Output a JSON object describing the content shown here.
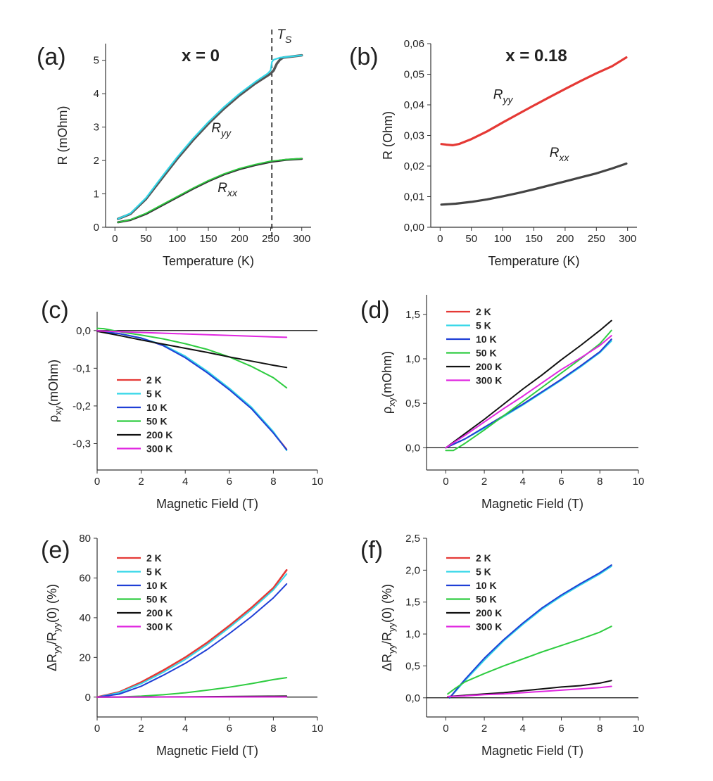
{
  "chart_data": [
    {
      "id": "a",
      "type": "line",
      "panel_label": "(a)",
      "title": "x = 0",
      "xlabel": "Temperature (K)",
      "ylabel": "R (mOhm)",
      "xlim": [
        -15,
        315
      ],
      "ylim": [
        0,
        5.5
      ],
      "xticks": [
        "0",
        "50",
        "100",
        "150",
        "200",
        "250",
        "300"
      ],
      "yticks": [
        "0",
        "1",
        "2",
        "3",
        "4",
        "5"
      ],
      "grid": false,
      "legend": "none",
      "annotations": [
        {
          "base": "R",
          "sub": "yy",
          "x": 155,
          "y": 2.85
        },
        {
          "base": "R",
          "sub": "xx",
          "x": 165,
          "y": 1.05
        },
        {
          "base": "T",
          "sub": "S",
          "x": 260,
          "y": 5.65
        }
      ],
      "vline": {
        "x": 252
      },
      "series": [
        {
          "name": "R_yy (dark)",
          "color": "#555555",
          "width": 3.5,
          "x": [
            5,
            25,
            50,
            75,
            100,
            125,
            150,
            175,
            200,
            225,
            250,
            255,
            260,
            265,
            270,
            300
          ],
          "y": [
            0.25,
            0.4,
            0.85,
            1.45,
            2.05,
            2.6,
            3.1,
            3.55,
            3.95,
            4.3,
            4.6,
            4.7,
            4.9,
            5.02,
            5.08,
            5.15
          ]
        },
        {
          "name": "R_yy",
          "color": "#33d6e8",
          "width": 2.2,
          "x": [
            5,
            25,
            50,
            75,
            100,
            125,
            150,
            175,
            200,
            225,
            245,
            250,
            252,
            255,
            265,
            300
          ],
          "y": [
            0.25,
            0.42,
            0.88,
            1.5,
            2.1,
            2.65,
            3.15,
            3.6,
            4.0,
            4.35,
            4.6,
            4.7,
            4.95,
            5.02,
            5.08,
            5.15
          ]
        },
        {
          "name": "R_xx (dark)",
          "color": "#333333",
          "width": 3.0,
          "x": [
            5,
            25,
            50,
            75,
            100,
            125,
            150,
            175,
            200,
            225,
            250,
            275,
            300
          ],
          "y": [
            0.15,
            0.22,
            0.4,
            0.65,
            0.9,
            1.15,
            1.38,
            1.58,
            1.74,
            1.86,
            1.96,
            2.02,
            2.05
          ]
        },
        {
          "name": "R_xx",
          "color": "#2ecc40",
          "width": 1.8,
          "x": [
            5,
            25,
            50,
            75,
            100,
            125,
            150,
            175,
            200,
            225,
            250,
            275,
            300
          ],
          "y": [
            0.15,
            0.23,
            0.42,
            0.67,
            0.92,
            1.17,
            1.4,
            1.6,
            1.76,
            1.88,
            1.98,
            2.03,
            2.06
          ]
        }
      ]
    },
    {
      "id": "b",
      "type": "line",
      "panel_label": "(b)",
      "title": "x = 0.18",
      "xlabel": "Temperature (K)",
      "ylabel": "R (Ohm)",
      "xlim": [
        -15,
        315
      ],
      "ylim": [
        0,
        0.06
      ],
      "xticks": [
        "0",
        "50",
        "100",
        "150",
        "200",
        "250",
        "300"
      ],
      "yticks": [
        "0,00",
        "0,01",
        "0,02",
        "0,03",
        "0,04",
        "0,05",
        "0,06"
      ],
      "grid": false,
      "legend": "none",
      "annotations": [
        {
          "base": "R",
          "sub": "yy",
          "x": 85,
          "y": 0.042
        },
        {
          "base": "R",
          "sub": "xx",
          "x": 175,
          "y": 0.023
        }
      ],
      "series": [
        {
          "name": "R_yy",
          "color": "#e53935",
          "width": 3.2,
          "x": [
            2,
            10,
            20,
            30,
            50,
            75,
            100,
            125,
            150,
            175,
            200,
            225,
            250,
            275,
            298
          ],
          "y": [
            0.0272,
            0.027,
            0.0268,
            0.0272,
            0.0288,
            0.0313,
            0.0342,
            0.037,
            0.0398,
            0.0425,
            0.0452,
            0.0478,
            0.0503,
            0.0526,
            0.0555
          ]
        },
        {
          "name": "R_xx",
          "color": "#444444",
          "width": 3.2,
          "x": [
            2,
            25,
            50,
            75,
            100,
            125,
            150,
            175,
            200,
            225,
            250,
            275,
            298
          ],
          "y": [
            0.0074,
            0.0077,
            0.0083,
            0.0091,
            0.0101,
            0.0112,
            0.0124,
            0.0137,
            0.015,
            0.0163,
            0.0176,
            0.0192,
            0.0208
          ]
        }
      ]
    },
    {
      "id": "c",
      "type": "line",
      "panel_label": "(c)",
      "title": "",
      "xlabel": "Magnetic Field (T)",
      "ylabel": "ρxy(mOhm)",
      "ylabel_parts": {
        "base": "ρ",
        "sub": "xy",
        "rest": "(mOhm)"
      },
      "xlim": [
        0,
        10
      ],
      "ylim": [
        -0.37,
        0.05
      ],
      "xticks": [
        "0",
        "2",
        "4",
        "6",
        "8",
        "10"
      ],
      "yticks": [
        "-0,3",
        "-0,2",
        "-0,1",
        "0,0"
      ],
      "ytick_values": [
        -0.3,
        -0.2,
        -0.1,
        0.0
      ],
      "hline": {
        "y": 0
      },
      "grid": false,
      "legend": "lower-left",
      "series": [
        {
          "name": "2 K",
          "color": "#e53935",
          "x": [
            0,
            1,
            2,
            3,
            4,
            5,
            6,
            7,
            8,
            8.6
          ],
          "y": [
            -0.002,
            -0.008,
            -0.02,
            -0.04,
            -0.07,
            -0.11,
            -0.155,
            -0.205,
            -0.27,
            -0.315
          ]
        },
        {
          "name": "5 K",
          "color": "#33d6e8",
          "x": [
            0,
            1,
            2,
            3,
            4,
            5,
            6,
            7,
            8,
            8.6
          ],
          "y": [
            -0.002,
            -0.008,
            -0.02,
            -0.038,
            -0.068,
            -0.108,
            -0.153,
            -0.203,
            -0.268,
            -0.318
          ]
        },
        {
          "name": "10 K",
          "color": "#1f3fd6",
          "x": [
            0,
            1,
            2,
            3,
            4,
            5,
            6,
            7,
            8,
            8.6
          ],
          "y": [
            -0.002,
            -0.008,
            -0.02,
            -0.04,
            -0.072,
            -0.112,
            -0.157,
            -0.207,
            -0.272,
            -0.316
          ]
        },
        {
          "name": "50 K",
          "color": "#2ecc40",
          "x": [
            0,
            0.3,
            1,
            2,
            3,
            4,
            5,
            6,
            7,
            8,
            8.6
          ],
          "y": [
            0.006,
            0.005,
            -0.003,
            -0.012,
            -0.022,
            -0.035,
            -0.05,
            -0.07,
            -0.095,
            -0.125,
            -0.152
          ]
        },
        {
          "name": "200 K",
          "color": "#111111",
          "x": [
            0,
            1,
            2,
            3,
            4,
            5,
            6,
            7,
            8,
            8.6
          ],
          "y": [
            -0.002,
            -0.013,
            -0.025,
            -0.036,
            -0.047,
            -0.058,
            -0.07,
            -0.081,
            -0.092,
            -0.098
          ]
        },
        {
          "name": "300 K",
          "color": "#e026e0",
          "x": [
            0,
            2,
            4,
            6,
            8,
            8.6
          ],
          "y": [
            -0.001,
            -0.005,
            -0.009,
            -0.013,
            -0.017,
            -0.018
          ]
        }
      ]
    },
    {
      "id": "d",
      "type": "line",
      "panel_label": "(d)",
      "title": "",
      "xlabel": "Magnetic Field (T)",
      "ylabel": "ρxy(mOhm)",
      "ylabel_parts": {
        "base": "ρ",
        "sub": "xy",
        "rest": "(mOhm)"
      },
      "xlim": [
        -1,
        10
      ],
      "ylim": [
        -0.25,
        1.72
      ],
      "xticks": [
        "0",
        "2",
        "4",
        "6",
        "8",
        "10"
      ],
      "yticks": [
        "0,0",
        "0,5",
        "1,0",
        "1,5"
      ],
      "ytick_values": [
        0.0,
        0.5,
        1.0,
        1.5
      ],
      "hline": {
        "y": 0
      },
      "grid": false,
      "legend": "top-left",
      "series": [
        {
          "name": "2 K",
          "color": "#e53935",
          "x": [
            0,
            1,
            2,
            3,
            4,
            5,
            6,
            7,
            8,
            8.6
          ],
          "y": [
            0,
            0.1,
            0.23,
            0.36,
            0.49,
            0.63,
            0.77,
            0.92,
            1.08,
            1.22
          ]
        },
        {
          "name": "5 K",
          "color": "#33d6e8",
          "x": [
            0,
            1,
            2,
            3,
            4,
            5,
            6,
            7,
            8,
            8.6
          ],
          "y": [
            0,
            0.1,
            0.22,
            0.35,
            0.48,
            0.62,
            0.76,
            0.91,
            1.07,
            1.2
          ]
        },
        {
          "name": "10 K",
          "color": "#1f3fd6",
          "x": [
            0,
            1,
            2,
            3,
            4,
            5,
            6,
            7,
            8,
            8.6
          ],
          "y": [
            0,
            0.1,
            0.23,
            0.36,
            0.49,
            0.63,
            0.77,
            0.92,
            1.08,
            1.22
          ]
        },
        {
          "name": "50 K",
          "color": "#2ecc40",
          "x": [
            0,
            0.4,
            1,
            2,
            3,
            4,
            5,
            6,
            7,
            8,
            8.6
          ],
          "y": [
            -0.03,
            -0.03,
            0.05,
            0.2,
            0.36,
            0.52,
            0.68,
            0.84,
            1.0,
            1.17,
            1.32
          ]
        },
        {
          "name": "200 K",
          "color": "#111111",
          "x": [
            0,
            1,
            2,
            3,
            4,
            5,
            6,
            7,
            8,
            8.6
          ],
          "y": [
            0,
            0.16,
            0.32,
            0.49,
            0.66,
            0.82,
            0.99,
            1.15,
            1.32,
            1.43
          ]
        },
        {
          "name": "300 K",
          "color": "#e026e0",
          "x": [
            0,
            1,
            2,
            3,
            4,
            5,
            6,
            7,
            8,
            8.6
          ],
          "y": [
            0,
            0.14,
            0.29,
            0.44,
            0.58,
            0.73,
            0.88,
            1.01,
            1.15,
            1.26
          ]
        }
      ]
    },
    {
      "id": "e",
      "type": "line",
      "panel_label": "(e)",
      "title": "",
      "xlabel": "Magnetic Field (T)",
      "ylabel": "ΔRyy/Ryy(0) (%)",
      "ylabel_parts": {
        "pre": "ΔR",
        "sub1": "yy",
        "mid": "/R",
        "sub2": "yy",
        "rest": "(0) (%)"
      },
      "xlim": [
        0,
        10
      ],
      "ylim": [
        -10,
        80
      ],
      "xticks": [
        "0",
        "2",
        "4",
        "6",
        "8",
        "10"
      ],
      "yticks": [
        "0",
        "20",
        "40",
        "60",
        "80"
      ],
      "ytick_values": [
        0,
        20,
        40,
        60,
        80
      ],
      "hline": {
        "y": 0
      },
      "grid": false,
      "legend": "top-left",
      "series": [
        {
          "name": "2 K",
          "color": "#e53935",
          "width": 2.6,
          "x": [
            0,
            1,
            2,
            3,
            4,
            5,
            6,
            7,
            8,
            8.6
          ],
          "y": [
            0,
            2.5,
            7.5,
            13.5,
            20,
            27.5,
            36,
            45,
            55,
            64
          ]
        },
        {
          "name": "5 K",
          "color": "#33d6e8",
          "x": [
            0,
            1,
            2,
            3,
            4,
            5,
            6,
            7,
            8,
            8.6
          ],
          "y": [
            0,
            2.2,
            6.8,
            12.5,
            19,
            26.5,
            35,
            44,
            54,
            62
          ]
        },
        {
          "name": "10 K",
          "color": "#1f3fd6",
          "x": [
            0,
            1,
            2,
            3,
            4,
            5,
            6,
            7,
            8,
            8.6
          ],
          "y": [
            0,
            1.5,
            5.5,
            11,
            17,
            24,
            32,
            40.5,
            50,
            57
          ]
        },
        {
          "name": "50 K",
          "color": "#2ecc40",
          "x": [
            0,
            1,
            2,
            3,
            4,
            5,
            6,
            7,
            8,
            8.6
          ],
          "y": [
            0,
            0.1,
            0.5,
            1.2,
            2.2,
            3.5,
            5,
            6.8,
            8.8,
            9.8
          ]
        },
        {
          "name": "200 K",
          "color": "#111111",
          "x": [
            0,
            2,
            4,
            6,
            8,
            8.6
          ],
          "y": [
            0,
            0.05,
            0.15,
            0.3,
            0.45,
            0.5
          ]
        },
        {
          "name": "300 K",
          "color": "#e026e0",
          "x": [
            0,
            4,
            8.6
          ],
          "y": [
            0,
            0.05,
            0.1
          ]
        }
      ]
    },
    {
      "id": "f",
      "type": "line",
      "panel_label": "(f)",
      "title": "",
      "xlabel": "Magnetic Field (T)",
      "ylabel": "ΔRyy/Ryy(0) (%)",
      "ylabel_parts": {
        "pre": "ΔR",
        "sub1": "yy",
        "mid": "/R",
        "sub2": "yy",
        "rest": "(0) (%)"
      },
      "xlim": [
        -1,
        10
      ],
      "ylim": [
        -0.3,
        2.5
      ],
      "xticks": [
        "0",
        "2",
        "4",
        "6",
        "8",
        "10"
      ],
      "yticks": [
        "0,0",
        "0,5",
        "1,0",
        "1,5",
        "2,0",
        "2,5"
      ],
      "ytick_values": [
        0.0,
        0.5,
        1.0,
        1.5,
        2.0,
        2.5
      ],
      "hline": {
        "y": 0
      },
      "grid": false,
      "legend": "top-left",
      "series": [
        {
          "name": "2 K",
          "color": "#e53935",
          "x": [
            0.2,
            0.5,
            1,
            2,
            3,
            4,
            5,
            6,
            7,
            8,
            8.6
          ],
          "y": [
            0,
            0.1,
            0.28,
            0.6,
            0.9,
            1.16,
            1.4,
            1.6,
            1.78,
            1.95,
            2.07
          ]
        },
        {
          "name": "5 K",
          "color": "#33d6e8",
          "x": [
            0.2,
            0.5,
            1,
            2,
            3,
            4,
            5,
            6,
            7,
            8,
            8.6
          ],
          "y": [
            0,
            0.1,
            0.27,
            0.59,
            0.89,
            1.15,
            1.39,
            1.59,
            1.77,
            1.94,
            2.06
          ]
        },
        {
          "name": "10 K",
          "color": "#1f3fd6",
          "x": [
            0.2,
            0.5,
            1,
            2,
            3,
            4,
            5,
            6,
            7,
            8,
            8.6
          ],
          "y": [
            0,
            0.11,
            0.29,
            0.62,
            0.91,
            1.17,
            1.41,
            1.61,
            1.79,
            1.96,
            2.08
          ]
        },
        {
          "name": "50 K",
          "color": "#2ecc40",
          "x": [
            0.1,
            0.5,
            1,
            2,
            3,
            4,
            5,
            6,
            7,
            8,
            8.6
          ],
          "y": [
            0.06,
            0.15,
            0.25,
            0.38,
            0.5,
            0.61,
            0.72,
            0.82,
            0.92,
            1.03,
            1.12
          ]
        },
        {
          "name": "200 K",
          "color": "#111111",
          "x": [
            0.1,
            1,
            2,
            3,
            4,
            5,
            6,
            7,
            8,
            8.6
          ],
          "y": [
            0.02,
            0.04,
            0.06,
            0.08,
            0.11,
            0.14,
            0.17,
            0.19,
            0.23,
            0.27
          ]
        },
        {
          "name": "300 K",
          "color": "#e026e0",
          "x": [
            0.1,
            1,
            2,
            3,
            4,
            5,
            6,
            7,
            8,
            8.6
          ],
          "y": [
            0.02,
            0.03,
            0.05,
            0.06,
            0.08,
            0.1,
            0.12,
            0.14,
            0.16,
            0.18
          ]
        }
      ]
    }
  ]
}
